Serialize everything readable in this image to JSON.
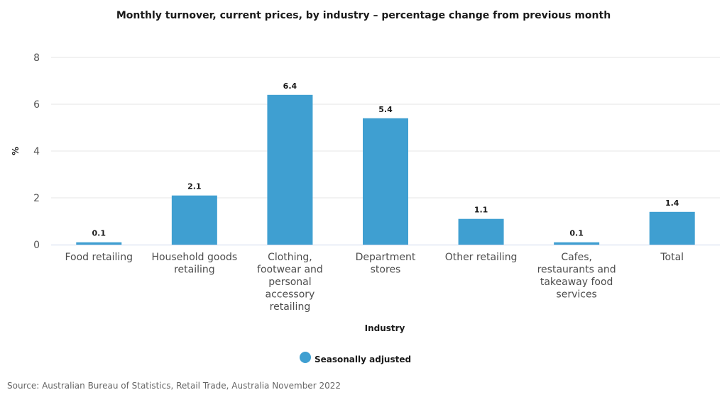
{
  "chart_data": {
    "type": "bar",
    "title": "Monthly turnover, current prices, by industry – percentage change from previous month",
    "xlabel": "Industry",
    "ylabel": "%",
    "ylim": [
      0,
      8
    ],
    "yticks": [
      "0",
      "2",
      "4",
      "6",
      "8"
    ],
    "grid": true,
    "legend_position": "bottom",
    "categories": [
      "Food retailing",
      "Household goods retailing",
      "Clothing, footwear and personal accessory retailing",
      "Department stores",
      "Other retailing",
      "Cafes, restaurants and takeaway food services",
      "Total"
    ],
    "category_lines": [
      [
        "Food retailing"
      ],
      [
        "Household goods",
        "retailing"
      ],
      [
        "Clothing,",
        "footwear and",
        "personal",
        "accessory",
        "retailing"
      ],
      [
        "Department",
        "stores"
      ],
      [
        "Other retailing"
      ],
      [
        "Cafes,",
        "restaurants and",
        "takeaway food",
        "services"
      ],
      [
        "Total"
      ]
    ],
    "series": [
      {
        "name": "Seasonally adjusted",
        "color": "#3f9fd1",
        "values": [
          0.1,
          2.1,
          6.4,
          5.4,
          1.1,
          0.1,
          1.4
        ],
        "labels": [
          "0.1",
          "2.1",
          "6.4",
          "5.4",
          "1.1",
          "0.1",
          "1.4"
        ]
      }
    ],
    "source": "Source: Australian Bureau of Statistics, Retail Trade, Australia November 2022"
  }
}
